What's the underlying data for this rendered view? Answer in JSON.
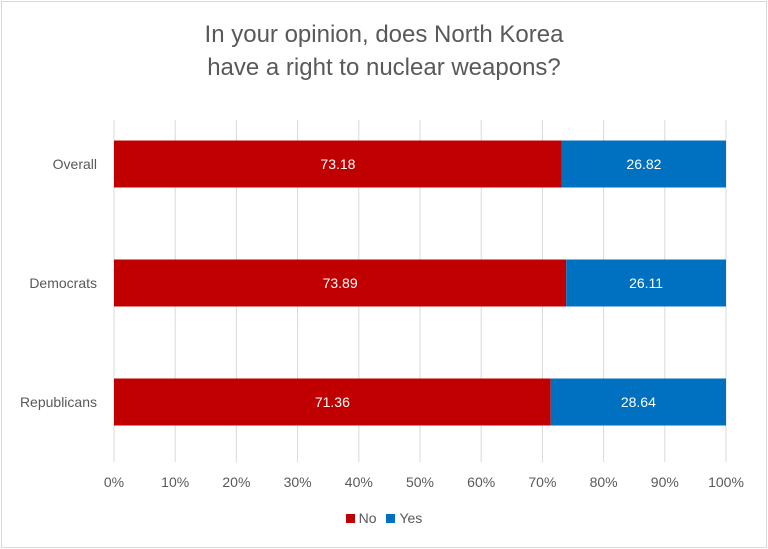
{
  "chart_data": {
    "type": "bar",
    "orientation": "horizontal",
    "stacked": true,
    "title_lines": [
      "In your opinion, does North Korea",
      "have a right to nuclear weapons?"
    ],
    "categories": [
      "Overall",
      "Democrats",
      "Republicans"
    ],
    "series": [
      {
        "name": "No",
        "color": "#c00000",
        "values": [
          73.18,
          73.89,
          71.36
        ]
      },
      {
        "name": "Yes",
        "color": "#0070c0",
        "values": [
          26.82,
          26.11,
          28.64
        ]
      }
    ],
    "data_labels": {
      "No": [
        "73.18",
        "73.89",
        "71.36"
      ],
      "Yes": [
        "26.82",
        "26.11",
        "28.64"
      ]
    },
    "x_ticks": [
      "0%",
      "10%",
      "20%",
      "30%",
      "40%",
      "50%",
      "60%",
      "70%",
      "80%",
      "90%",
      "100%"
    ],
    "xlim": [
      0,
      100
    ],
    "grid": true,
    "legend_position": "bottom"
  }
}
